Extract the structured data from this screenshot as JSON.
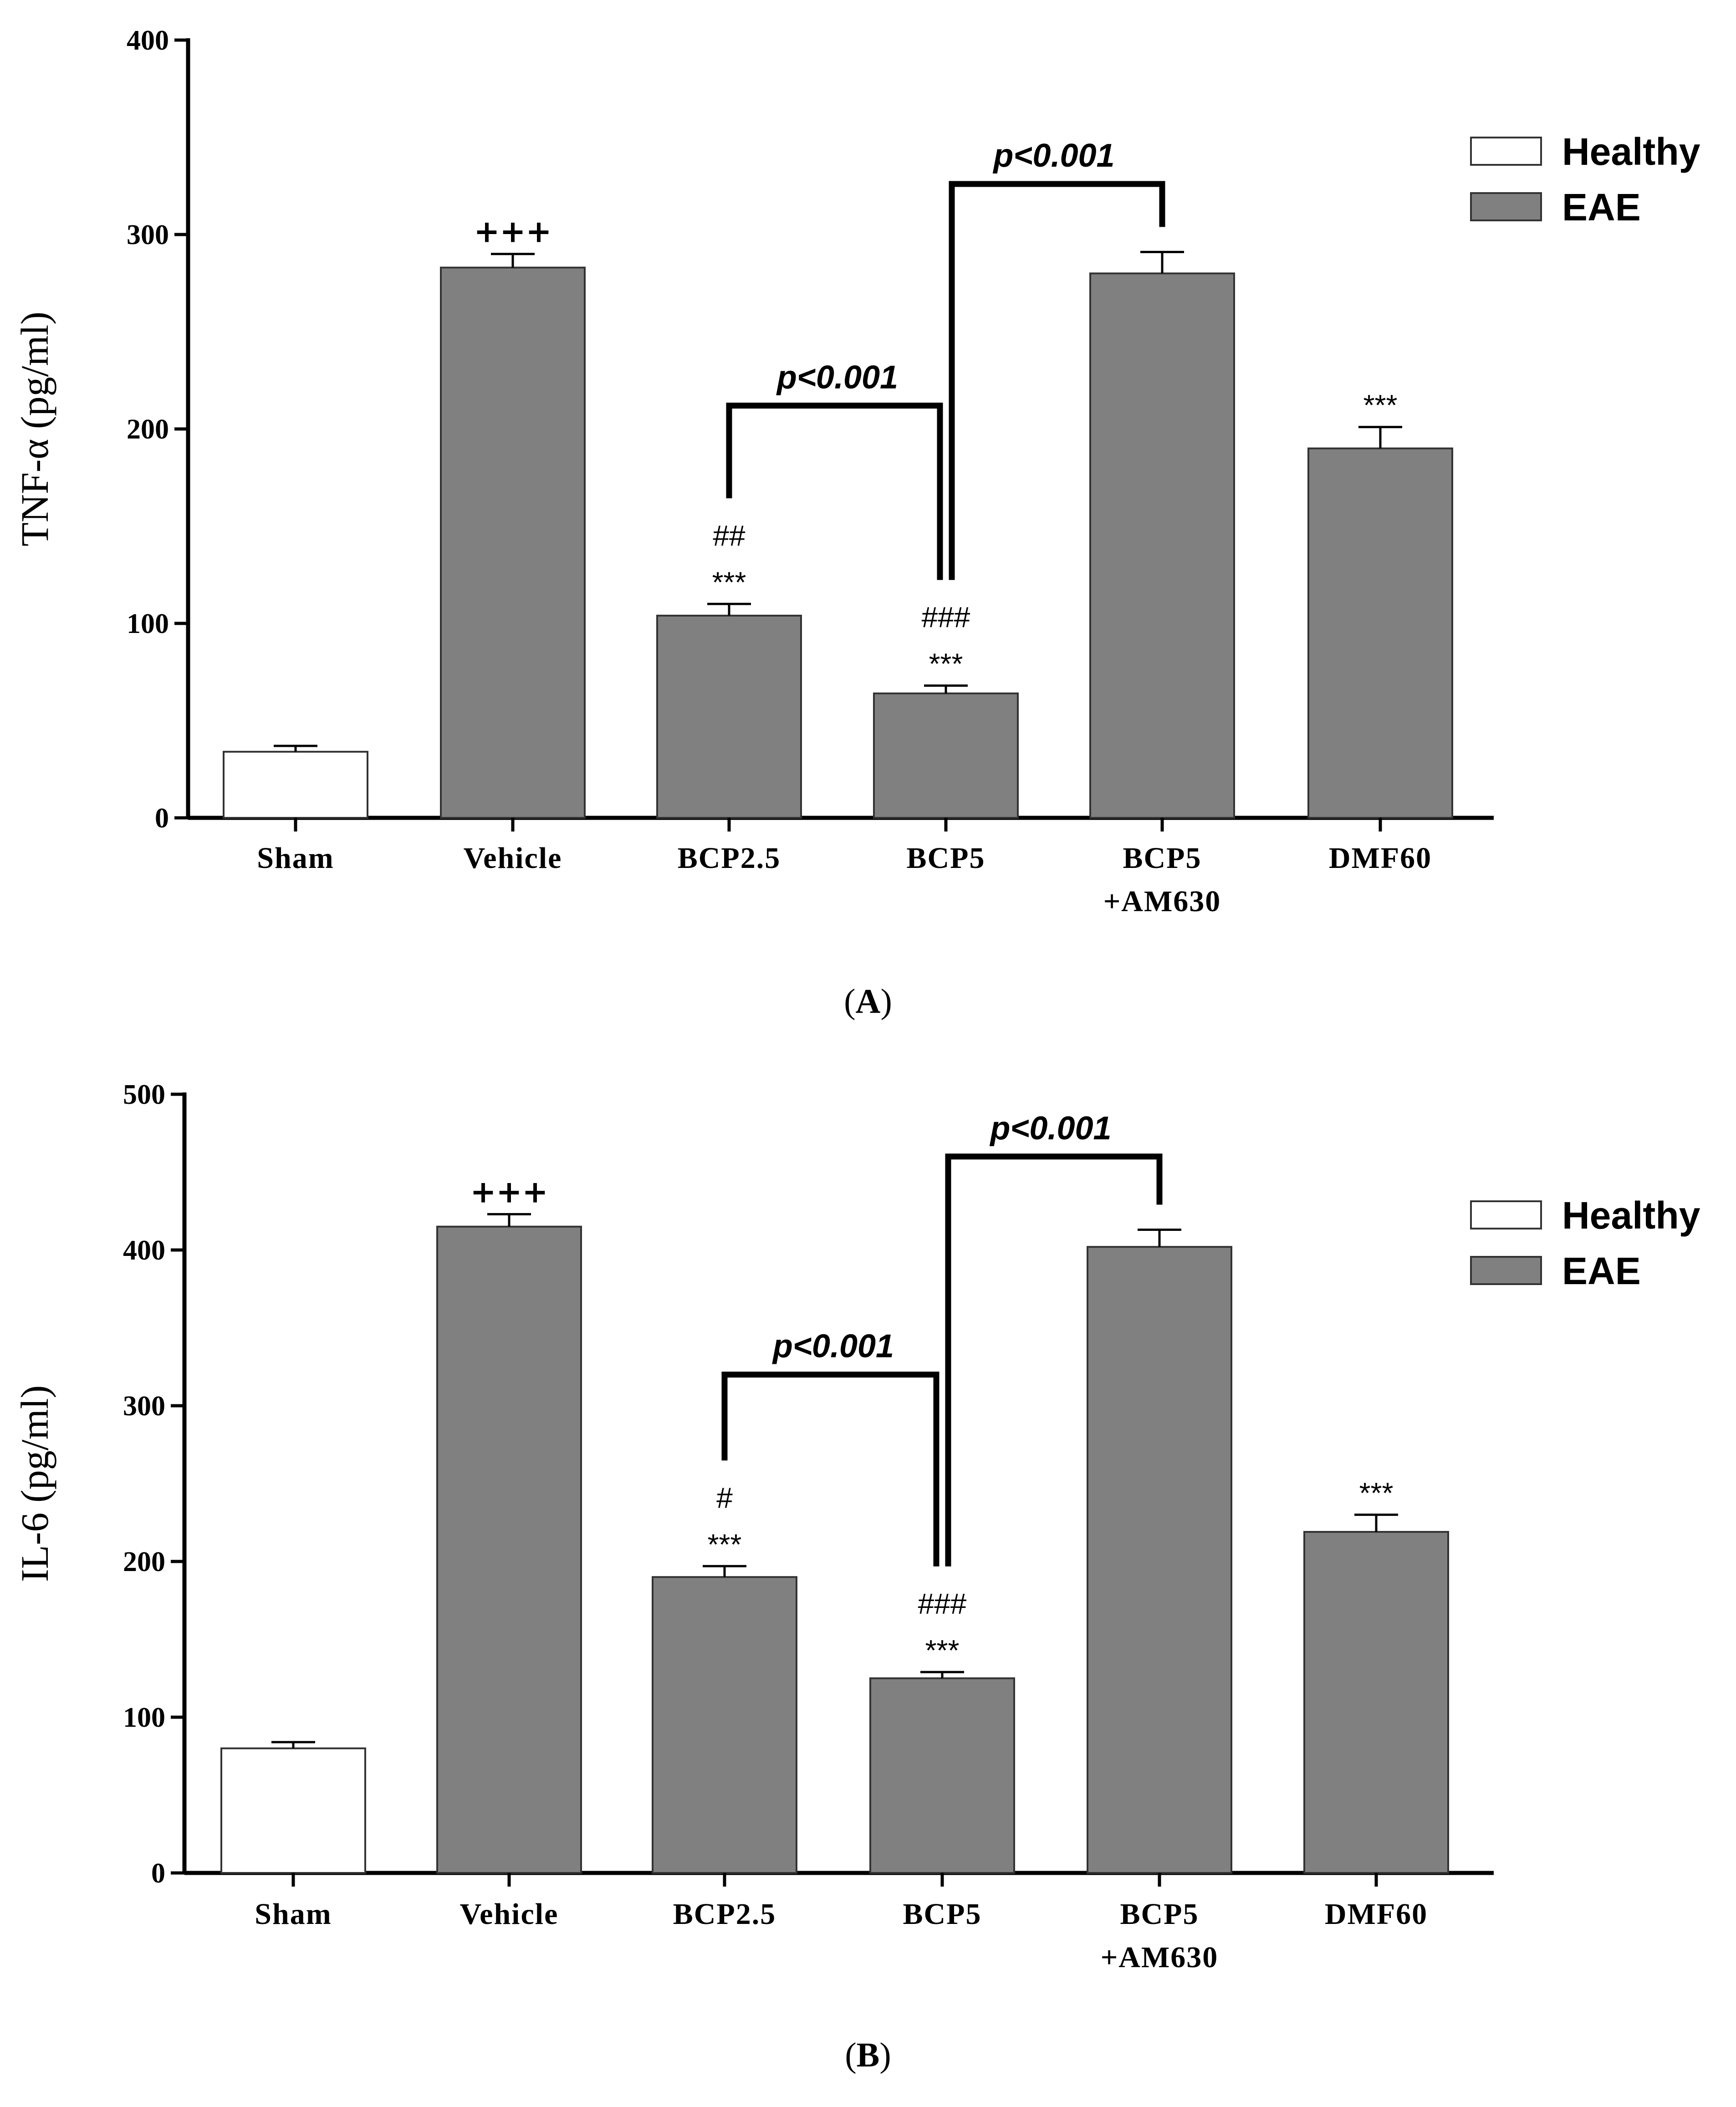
{
  "chart_data": [
    {
      "panel": "A",
      "panel_label_open": "(",
      "panel_label_letter": "A",
      "panel_label_close": ")",
      "type": "bar",
      "ylabel": "TNF-α (pg/ml)",
      "ylim": [
        0,
        400
      ],
      "yticks": [
        0,
        100,
        200,
        300,
        400
      ],
      "categories": [
        "Sham",
        "Vehicle",
        "BCP2.5",
        "BCP5",
        "BCP5\n+AM630",
        "DMF60"
      ],
      "values": [
        34,
        283,
        104,
        64,
        280,
        190
      ],
      "errors": [
        3,
        7,
        6,
        4,
        11,
        11
      ],
      "groups": [
        "Healthy",
        "EAE",
        "EAE",
        "EAE",
        "EAE",
        "EAE"
      ],
      "annotations": [
        {
          "bar": 1,
          "lines": [
            "+++"
          ]
        },
        {
          "bar": 2,
          "lines": [
            "##",
            "***"
          ]
        },
        {
          "bar": 3,
          "lines": [
            "###",
            "***"
          ]
        },
        {
          "bar": 5,
          "lines": [
            "***"
          ]
        }
      ],
      "comparisons": [
        {
          "from": 2,
          "to": 3,
          "label": "p<0.001",
          "level": 212
        },
        {
          "from": 3,
          "to": 4,
          "label": "p<0.001",
          "level": 326
        }
      ],
      "legend": [
        {
          "label": "Healthy",
          "color": "#ffffff"
        },
        {
          "label": "EAE",
          "color": "#808080"
        }
      ]
    },
    {
      "panel": "B",
      "panel_label_open": "(",
      "panel_label_letter": "B",
      "panel_label_close": ")",
      "type": "bar",
      "ylabel": "IL-6 (pg/ml)",
      "ylim": [
        0,
        500
      ],
      "yticks": [
        0,
        100,
        200,
        300,
        400,
        500
      ],
      "categories": [
        "Sham",
        "Vehicle",
        "BCP2.5",
        "BCP5",
        "BCP5\n+AM630",
        "DMF60"
      ],
      "values": [
        80,
        415,
        190,
        125,
        402,
        219
      ],
      "errors": [
        4,
        8,
        7,
        4,
        11,
        11
      ],
      "groups": [
        "Healthy",
        "EAE",
        "EAE",
        "EAE",
        "EAE",
        "EAE"
      ],
      "annotations": [
        {
          "bar": 1,
          "lines": [
            "+++"
          ]
        },
        {
          "bar": 2,
          "lines": [
            "#",
            "***"
          ]
        },
        {
          "bar": 3,
          "lines": [
            "###",
            "***"
          ]
        },
        {
          "bar": 5,
          "lines": [
            "***"
          ]
        }
      ],
      "comparisons": [
        {
          "from": 2,
          "to": 3,
          "label": "p<0.001",
          "level": 320
        },
        {
          "from": 3,
          "to": 4,
          "label": "p<0.001",
          "level": 460
        }
      ],
      "legend": [
        {
          "label": "Healthy",
          "color": "#ffffff"
        },
        {
          "label": "EAE",
          "color": "#808080"
        }
      ]
    }
  ]
}
